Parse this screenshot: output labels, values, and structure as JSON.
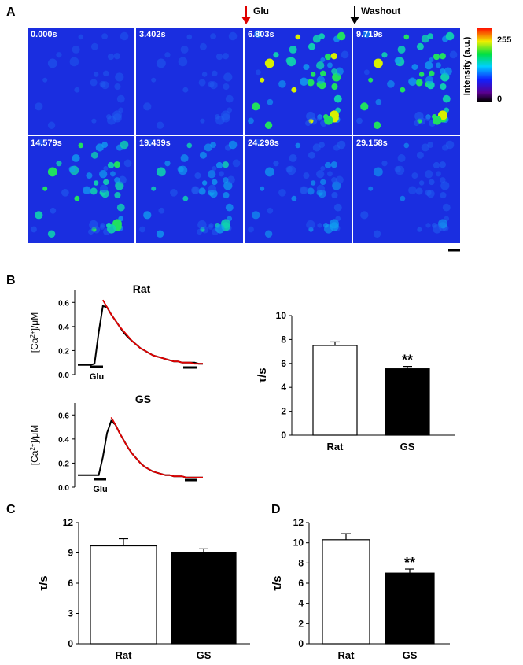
{
  "panel_labels": [
    "A",
    "B",
    "C",
    "D"
  ],
  "panel_a": {
    "frames": [
      "0.000s",
      "3.402s",
      "6.803s",
      "9.719s",
      "14.579s",
      "19.439s",
      "24.298s",
      "29.158s"
    ],
    "arrows": [
      "Glu",
      "Washout"
    ],
    "colorbar": {
      "title": "Intensity (a.u.)",
      "lim": [
        0,
        255
      ],
      "ticks": [
        0,
        255
      ]
    }
  },
  "chart_data": [
    {
      "type": "line",
      "title": "Rat",
      "ylabel": [
        "[Ca",
        "2+",
        "]/μM"
      ],
      "stimulus_label": "Glu",
      "ylim": [
        0,
        0.7
      ],
      "yticks": [
        {
          "value": 0,
          "label": "0.0"
        },
        0.2,
        0.4,
        0.6
      ],
      "series": [
        {
          "color": "#000000",
          "values": [
            0.08,
            0.08,
            0.08,
            0.08,
            0.09,
            0.35,
            0.57,
            0.56,
            0.5,
            0.45,
            0.4,
            0.35,
            0.31,
            0.28,
            0.25,
            0.22,
            0.2,
            0.18,
            0.16,
            0.15,
            0.14,
            0.13,
            0.12,
            0.11,
            0.11,
            0.1,
            0.1,
            0.1,
            0.1,
            0.09,
            0.09
          ]
        },
        {
          "color": "#e00000",
          "values": [
            null,
            null,
            null,
            null,
            null,
            null,
            0.62,
            0.56,
            0.5,
            0.45,
            0.4,
            0.36,
            0.32,
            0.28,
            0.25,
            0.22,
            0.2,
            0.18,
            0.16,
            0.15,
            0.14,
            0.13,
            0.12,
            0.11,
            0.11,
            0.1,
            0.1,
            0.1,
            0.09,
            0.09,
            0.09
          ]
        }
      ]
    },
    {
      "type": "line",
      "title": "GS",
      "ylabel": [
        "[Ca",
        "2+",
        "]/μM"
      ],
      "stimulus_label": "Glu",
      "ylim": [
        0,
        0.7
      ],
      "yticks": [
        {
          "value": 0,
          "label": "0.0"
        },
        0.2,
        0.4,
        0.6
      ],
      "series": [
        {
          "color": "#000000",
          "values": [
            0.1,
            0.1,
            0.1,
            0.1,
            0.1,
            0.1,
            0.25,
            0.45,
            0.55,
            0.52,
            0.45,
            0.39,
            0.33,
            0.28,
            0.24,
            0.2,
            0.17,
            0.15,
            0.13,
            0.12,
            0.11,
            0.1,
            0.1,
            0.09,
            0.09,
            0.09,
            0.08,
            0.08,
            0.08,
            0.08,
            0.08
          ]
        },
        {
          "color": "#e00000",
          "values": [
            null,
            null,
            null,
            null,
            null,
            null,
            null,
            null,
            0.58,
            0.52,
            0.45,
            0.39,
            0.33,
            0.28,
            0.24,
            0.2,
            0.17,
            0.15,
            0.13,
            0.12,
            0.11,
            0.1,
            0.1,
            0.09,
            0.09,
            0.09,
            0.08,
            0.08,
            0.08,
            0.08,
            0.08
          ]
        }
      ]
    },
    {
      "type": "bar",
      "ylabel": "τ/s",
      "categories": [
        "Rat",
        "GS"
      ],
      "values": [
        7.5,
        5.55
      ],
      "errors": [
        0.3,
        0.2
      ],
      "colors": [
        "#ffffff",
        "#000000"
      ],
      "annotations": [
        null,
        "**"
      ],
      "ylim": [
        0,
        10
      ],
      "yticks": [
        0,
        2,
        4,
        6,
        8,
        10
      ]
    },
    {
      "type": "bar",
      "ylabel": "τ/s",
      "categories": [
        "Rat",
        "GS"
      ],
      "values": [
        9.7,
        9.0
      ],
      "errors": [
        0.7,
        0.4
      ],
      "colors": [
        "#ffffff",
        "#000000"
      ],
      "ylim": [
        0,
        12
      ],
      "yticks": [
        0,
        3,
        6,
        9,
        12
      ]
    },
    {
      "type": "bar",
      "ylabel": "τ/s",
      "categories": [
        "Rat",
        "GS"
      ],
      "values": [
        10.3,
        7.0
      ],
      "errors": [
        0.6,
        0.4
      ],
      "colors": [
        "#ffffff",
        "#000000"
      ],
      "annotations": [
        null,
        "**"
      ],
      "ylim": [
        0,
        12
      ],
      "yticks": [
        0,
        2,
        4,
        6,
        8,
        10,
        12
      ]
    }
  ]
}
